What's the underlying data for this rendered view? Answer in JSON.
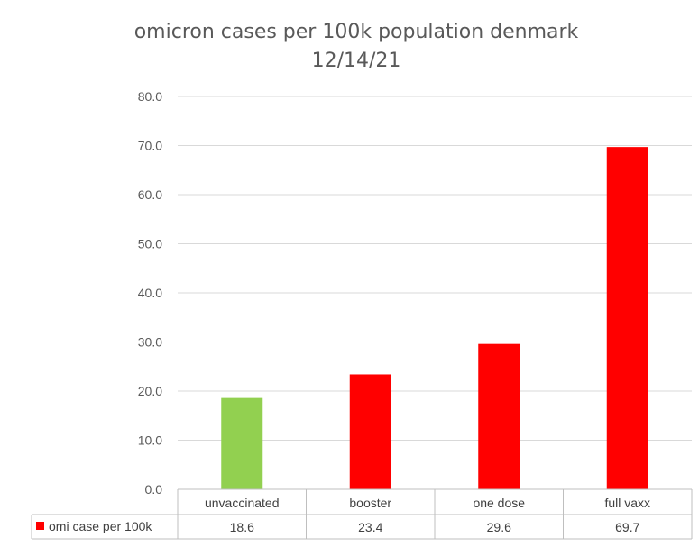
{
  "chart_data": {
    "type": "bar",
    "title": "omicron cases per 100k population denmark",
    "subtitle": "12/14/21",
    "categories": [
      "unvaccinated",
      "booster",
      "one dose",
      "full vaxx"
    ],
    "series": [
      {
        "name": "omi case per 100k",
        "values": [
          18.6,
          23.4,
          29.6,
          69.7
        ],
        "value_labels": [
          "18.6",
          "23.4",
          "29.6",
          "69.7"
        ],
        "color": "#ff0000"
      }
    ],
    "bar_colors": [
      "#92d050",
      "#ff0000",
      "#ff0000",
      "#ff0000"
    ],
    "ylim": [
      0,
      80
    ],
    "y_ticks": [
      0,
      10,
      20,
      30,
      40,
      50,
      60,
      70,
      80
    ],
    "y_tick_labels": [
      "0.0",
      "10.0",
      "20.0",
      "30.0",
      "40.0",
      "50.0",
      "60.0",
      "70.0",
      "80.0"
    ],
    "grid": true,
    "legend": "data-table",
    "xlabel": "",
    "ylabel": ""
  }
}
